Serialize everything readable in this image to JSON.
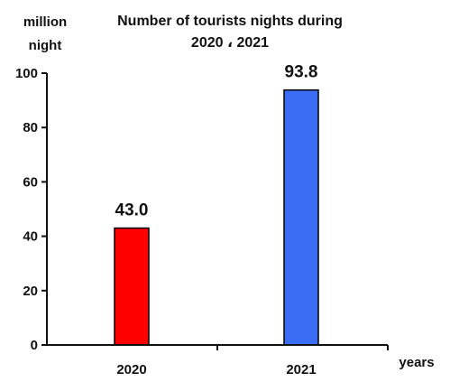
{
  "chart_data": {
    "type": "bar",
    "title_line1": "Number of tourists nights during",
    "title_line2": "2020 ، 2021",
    "ylabel_line1": "million",
    "ylabel_line2": "night",
    "xlabel": "years",
    "categories": [
      "2020",
      "2021"
    ],
    "values": [
      43.0,
      93.8
    ],
    "data_labels": [
      "43.0",
      "93.8"
    ],
    "bar_colors": [
      "#ff0000",
      "#3a6cf4"
    ],
    "ylim": [
      0,
      100
    ],
    "yticks": [
      0,
      20,
      40,
      60,
      80,
      100
    ],
    "grid": false,
    "legend": "none"
  }
}
